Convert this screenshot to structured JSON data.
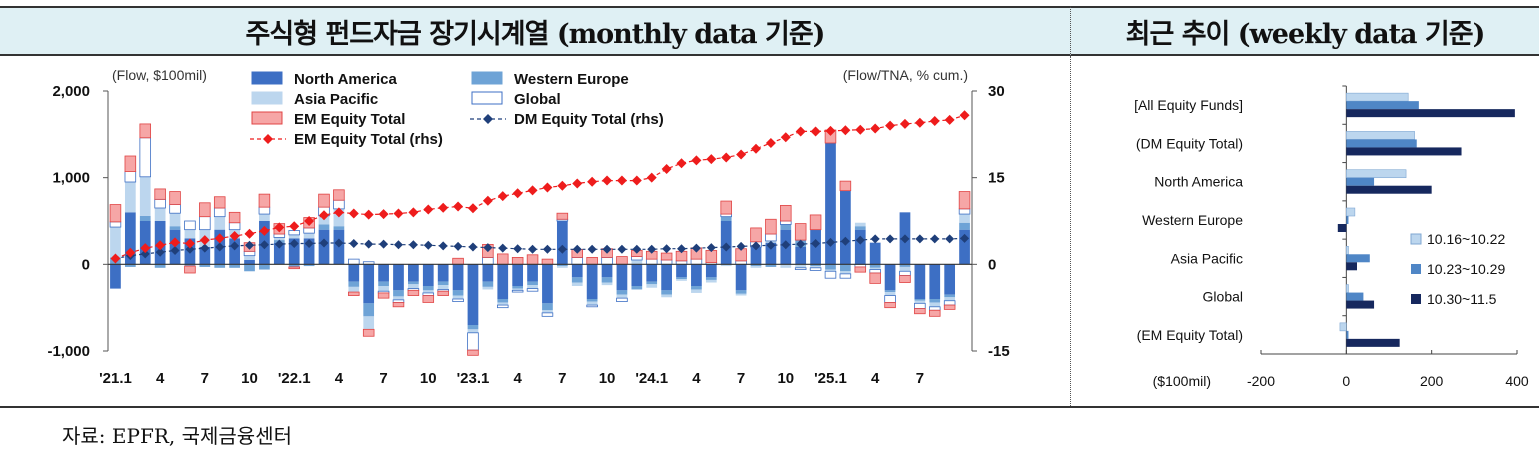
{
  "header": {
    "left_title": "주식형 펀드자금 장기시계열 (monthly data 기준)",
    "right_title": "최근 추이 (weekly data 기준)"
  },
  "source_note": "자료: EPFR, 국제금융센터",
  "colors": {
    "north_america": "#3d6fc4",
    "western_europe": "#6ea3d6",
    "asia_pacific": "#bcd6ee",
    "global_fill": "#ffffff",
    "global_edge": "#3d6fc4",
    "em_total": "#f6a6a6",
    "em_edge": "#e04444",
    "dm_rhs": "#1f3f7a",
    "em_rhs": "#ee1c1c",
    "w1": "#bcd6ee",
    "w2": "#4f86c6",
    "w3": "#16285e"
  },
  "chart_data": [
    {
      "type": "bar",
      "title": "주식형 펀드자금 장기시계열 (monthly data 기준)",
      "left_axis_label": "(Flow, $100mil)",
      "right_axis_label": "(Flow/TNA, % cum.)",
      "ylim": [
        -1000,
        2000
      ],
      "ylim_rhs": [
        -15,
        30
      ],
      "y_ticks": [
        -1000,
        0,
        1000,
        2000
      ],
      "y_tick_labels": [
        "-1,000",
        "0",
        "1,000",
        "2,000"
      ],
      "y_ticks_rhs": [
        -15,
        0,
        15,
        30
      ],
      "x_tick_labels": [
        {
          "index": 0,
          "label": "'21.1"
        },
        {
          "index": 3,
          "label": "4"
        },
        {
          "index": 6,
          "label": "7"
        },
        {
          "index": 9,
          "label": "10"
        },
        {
          "index": 12,
          "label": "'22.1"
        },
        {
          "index": 15,
          "label": "4"
        },
        {
          "index": 18,
          "label": "7"
        },
        {
          "index": 21,
          "label": "10"
        },
        {
          "index": 24,
          "label": "'23.1"
        },
        {
          "index": 27,
          "label": "4"
        },
        {
          "index": 30,
          "label": "7"
        },
        {
          "index": 33,
          "label": "10"
        },
        {
          "index": 36,
          "label": "'24.1"
        },
        {
          "index": 39,
          "label": "4"
        },
        {
          "index": 42,
          "label": "7"
        },
        {
          "index": 45,
          "label": "10"
        },
        {
          "index": 48,
          "label": "'25.1"
        },
        {
          "index": 51,
          "label": "4"
        },
        {
          "index": 54,
          "label": "7"
        }
      ],
      "legend": [
        {
          "key": "north_america",
          "label": "North America",
          "kind": "bar"
        },
        {
          "key": "western_europe",
          "label": "Western Europe",
          "kind": "bar"
        },
        {
          "key": "asia_pacific",
          "label": "Asia Pacific",
          "kind": "bar"
        },
        {
          "key": "global",
          "label": "Global",
          "kind": "bar-outline"
        },
        {
          "key": "em_total",
          "label": "EM Equity Total",
          "kind": "bar"
        },
        {
          "key": "dm_rhs",
          "label": "DM Equity Total (rhs)",
          "kind": "line-diamond"
        },
        {
          "key": "em_rhs",
          "label": "EM Equity Total (rhs)",
          "kind": "line-diamond"
        }
      ],
      "series": [
        {
          "name": "North America",
          "key": "north_america",
          "values": [
            -280,
            600,
            500,
            500,
            400,
            300,
            200,
            400,
            300,
            50,
            500,
            250,
            300,
            300,
            400,
            400,
            -200,
            -450,
            -200,
            -300,
            -200,
            -250,
            -200,
            -300,
            -700,
            -200,
            -400,
            -250,
            -200,
            -450,
            500,
            -150,
            -400,
            -150,
            -300,
            -250,
            -200,
            -300,
            -150,
            -250,
            -150,
            500,
            -300,
            200,
            250,
            400,
            200,
            400,
            1400,
            850,
            400,
            250,
            -300,
            600,
            -400,
            -400,
            -350,
            400
          ]
        },
        {
          "name": "Western Europe",
          "key": "western_europe",
          "values": [
            80,
            -30,
            60,
            -40,
            40,
            -20,
            -30,
            -40,
            -40,
            -80,
            -60,
            30,
            -30,
            -20,
            60,
            40,
            -60,
            -150,
            -50,
            -70,
            -30,
            -50,
            -40,
            -60,
            -50,
            -60,
            -40,
            -30,
            -40,
            -80,
            -20,
            -60,
            -30,
            -60,
            -50,
            -40,
            -30,
            -50,
            -20,
            -40,
            -30,
            50,
            -40,
            -20,
            -30,
            60,
            80,
            -20,
            -60,
            -80,
            40,
            -40,
            -20,
            -30,
            -20,
            -40,
            -30,
            80
          ]
        },
        {
          "name": "Asia Pacific",
          "key": "asia_pacific",
          "values": [
            350,
            350,
            450,
            150,
            150,
            100,
            200,
            150,
            100,
            50,
            80,
            30,
            40,
            60,
            100,
            200,
            -60,
            -150,
            -60,
            -40,
            -50,
            -30,
            -50,
            -40,
            -40,
            -30,
            -30,
            -20,
            -40,
            -30,
            -20,
            -40,
            -40,
            -30,
            -40,
            50,
            -40,
            -30,
            -20,
            -40,
            -30,
            -20,
            -20,
            -20,
            20,
            -40,
            -40,
            -20,
            -20,
            -30,
            40,
            -20,
            -40,
            -50,
            -30,
            -50,
            -40,
            100
          ]
        },
        {
          "name": "Global",
          "key": "global",
          "values": [
            60,
            120,
            450,
            100,
            100,
            100,
            150,
            100,
            80,
            50,
            80,
            40,
            50,
            60,
            100,
            100,
            60,
            30,
            -20,
            -30,
            -20,
            -30,
            -20,
            -30,
            -200,
            80,
            -30,
            -20,
            -30,
            -40,
            20,
            80,
            -20,
            80,
            -40,
            40,
            60,
            50,
            40,
            60,
            20,
            30,
            40,
            60,
            80,
            40,
            -20,
            -30,
            -80,
            -50,
            -30,
            -40,
            -80,
            -50,
            -60,
            -40,
            -50,
            60
          ]
        },
        {
          "name": "EM Equity Total",
          "key": "em_total",
          "values": [
            200,
            180,
            160,
            120,
            150,
            -80,
            160,
            130,
            120,
            100,
            150,
            120,
            -20,
            120,
            150,
            120,
            -40,
            -80,
            -60,
            -50,
            -60,
            -80,
            -50,
            70,
            -60,
            150,
            120,
            80,
            110,
            60,
            70,
            90,
            80,
            100,
            90,
            70,
            90,
            80,
            110,
            130,
            140,
            150,
            140,
            160,
            170,
            180,
            190,
            170,
            150,
            110,
            -60,
            -120,
            -60,
            -80,
            -60,
            -70,
            -50,
            200
          ]
        },
        {
          "name": "DM Equity Total (rhs)",
          "key": "dm_rhs",
          "axis": "rhs",
          "values": [
            1.0,
            1.5,
            1.8,
            2.1,
            2.4,
            2.6,
            2.8,
            3.0,
            3.2,
            3.3,
            3.4,
            3.5,
            3.6,
            3.6,
            3.7,
            3.7,
            3.6,
            3.5,
            3.5,
            3.4,
            3.4,
            3.3,
            3.2,
            3.1,
            3.0,
            2.9,
            2.8,
            2.7,
            2.6,
            2.6,
            2.6,
            2.6,
            2.6,
            2.6,
            2.6,
            2.6,
            2.6,
            2.7,
            2.7,
            2.8,
            2.9,
            3.0,
            3.1,
            3.2,
            3.3,
            3.4,
            3.5,
            3.6,
            3.8,
            4.0,
            4.2,
            4.4,
            4.4,
            4.4,
            4.4,
            4.4,
            4.4,
            4.5
          ]
        },
        {
          "name": "EM Equity Total (rhs)",
          "key": "em_rhs",
          "axis": "rhs",
          "values": [
            1.0,
            2.0,
            2.8,
            3.3,
            3.8,
            3.6,
            4.2,
            4.5,
            4.9,
            5.3,
            5.8,
            6.4,
            6.6,
            7.5,
            8.5,
            9.0,
            8.8,
            8.6,
            8.7,
            8.8,
            9.0,
            9.5,
            9.8,
            10.0,
            9.7,
            11.0,
            11.8,
            12.3,
            12.8,
            13.3,
            13.6,
            14.0,
            14.3,
            14.5,
            14.5,
            14.5,
            15.0,
            16.5,
            17.5,
            18.0,
            18.2,
            18.5,
            19.0,
            20.0,
            21.0,
            22.0,
            23.0,
            23.0,
            23.1,
            23.2,
            23.3,
            23.5,
            24.0,
            24.3,
            24.5,
            24.8,
            25.0,
            25.8
          ]
        }
      ]
    },
    {
      "type": "bar",
      "orientation": "horizontal",
      "title": "최근 추이 (weekly data 기준)",
      "unit_label": "($100mil)",
      "xlim": [
        -200,
        400
      ],
      "x_ticks": [
        -200,
        0,
        200,
        400
      ],
      "categories": [
        "[All Equity Funds]",
        "(DM Equity Total)",
        "North America",
        "Western Europe",
        "Asia Pacific",
        "Global",
        "(EM Equity Total)"
      ],
      "series": [
        {
          "name": "10.16~10.22",
          "key": "w1",
          "values": [
            145,
            160,
            140,
            20,
            5,
            5,
            -15
          ]
        },
        {
          "name": "10.23~10.29",
          "key": "w2",
          "values": [
            170,
            165,
            65,
            5,
            55,
            40,
            5
          ]
        },
        {
          "name": "10.30~11.5",
          "key": "w3",
          "values": [
            395,
            270,
            200,
            -20,
            25,
            65,
            125
          ]
        }
      ]
    }
  ]
}
